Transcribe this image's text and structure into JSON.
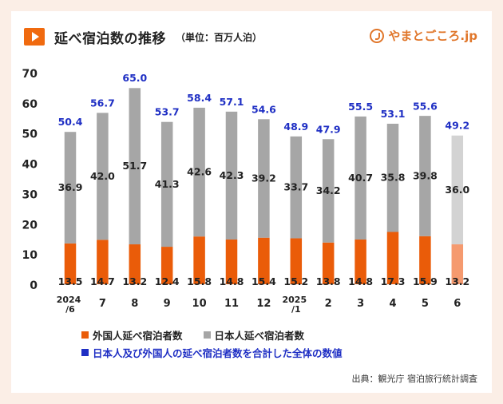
{
  "header": {
    "title": "延べ宿泊数の推移",
    "unit": "（単位：百万人泊）",
    "brand": "やまとごころ.jp"
  },
  "legend": {
    "foreign": "外国人延べ宿泊者数",
    "japanese": "日本人延べ宿泊者数",
    "total_note": "日本人及び外国人の延べ宿泊者数を合計した全体の数値"
  },
  "source": "出典：観光庁 宿泊旅行統計調査",
  "colors": {
    "foreign": "#ea5c09",
    "japanese": "#a6a6a6",
    "foreign_light": "#f59a6f",
    "japanese_light": "#d3d3d3",
    "total_label": "#1f2fc4"
  },
  "chart_data": {
    "type": "bar",
    "stacked": true,
    "categories": [
      "2024\n/6",
      "7",
      "8",
      "9",
      "10",
      "11",
      "12",
      "2025\n/1",
      "2",
      "3",
      "4",
      "5",
      "6"
    ],
    "series": [
      {
        "name": "外国人延べ宿泊者数",
        "values": [
          13.5,
          14.7,
          13.2,
          12.4,
          15.8,
          14.8,
          15.4,
          15.2,
          13.8,
          14.8,
          17.3,
          15.9,
          13.2
        ]
      },
      {
        "name": "日本人延べ宿泊者数",
        "values": [
          36.9,
          42.0,
          51.7,
          41.3,
          42.6,
          42.3,
          39.2,
          33.7,
          34.2,
          40.7,
          35.8,
          39.8,
          36.0
        ]
      }
    ],
    "totals": [
      50.4,
      56.7,
      65.0,
      53.7,
      58.4,
      57.1,
      54.6,
      48.9,
      47.9,
      55.5,
      53.1,
      55.6,
      49.2
    ],
    "preliminary_index": 12,
    "ylim": [
      0,
      70
    ],
    "yticks": [
      0,
      10,
      20,
      30,
      40,
      50,
      60,
      70
    ],
    "grid": false
  }
}
